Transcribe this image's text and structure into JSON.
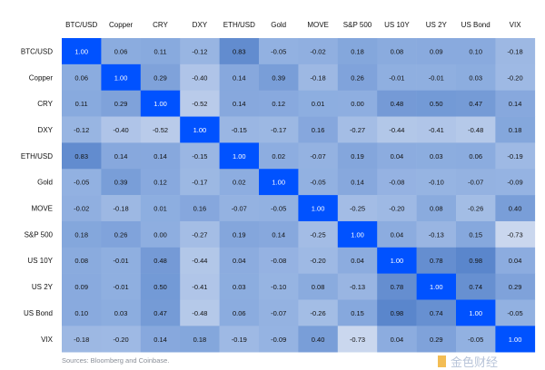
{
  "chart_data": {
    "type": "heatmap",
    "title": "",
    "columns": [
      "BTC/USD",
      "Copper",
      "CRY",
      "DXY",
      "ETH/USD",
      "Gold",
      "MOVE",
      "S&P 500",
      "US 10Y",
      "US 2Y",
      "US Bond",
      "VIX"
    ],
    "rows": [
      "BTC/USD",
      "Copper",
      "CRY",
      "DXY",
      "ETH/USD",
      "Gold",
      "MOVE",
      "S&P 500",
      "US 10Y",
      "US 2Y",
      "US Bond",
      "VIX"
    ],
    "values": [
      [
        1.0,
        0.06,
        0.11,
        -0.12,
        0.83,
        -0.05,
        -0.02,
        0.18,
        0.08,
        0.09,
        0.1,
        -0.18
      ],
      [
        0.06,
        1.0,
        0.29,
        -0.4,
        0.14,
        0.39,
        -0.18,
        0.26,
        -0.01,
        -0.01,
        0.03,
        -0.2
      ],
      [
        0.11,
        0.29,
        1.0,
        -0.52,
        0.14,
        0.12,
        0.01,
        0.0,
        0.48,
        0.5,
        0.47,
        0.14
      ],
      [
        -0.12,
        -0.4,
        -0.52,
        1.0,
        -0.15,
        -0.17,
        0.16,
        -0.27,
        -0.44,
        -0.41,
        -0.48,
        0.18
      ],
      [
        0.83,
        0.14,
        0.14,
        -0.15,
        1.0,
        0.02,
        -0.07,
        0.19,
        0.04,
        0.03,
        0.06,
        -0.19
      ],
      [
        -0.05,
        0.39,
        0.12,
        -0.17,
        0.02,
        1.0,
        -0.05,
        0.14,
        -0.08,
        -0.1,
        -0.07,
        -0.09
      ],
      [
        -0.02,
        -0.18,
        0.01,
        0.16,
        -0.07,
        -0.05,
        1.0,
        -0.25,
        -0.2,
        0.08,
        -0.26,
        0.4
      ],
      [
        0.18,
        0.26,
        0.0,
        -0.27,
        0.19,
        0.14,
        -0.25,
        1.0,
        0.04,
        -0.13,
        0.15,
        -0.73
      ],
      [
        0.08,
        -0.01,
        0.48,
        -0.44,
        0.04,
        -0.08,
        -0.2,
        0.04,
        1.0,
        0.78,
        0.98,
        0.04
      ],
      [
        0.09,
        -0.01,
        0.5,
        -0.41,
        0.03,
        -0.1,
        0.08,
        -0.13,
        0.78,
        1.0,
        0.74,
        0.29
      ],
      [
        0.1,
        0.03,
        0.47,
        -0.48,
        0.06,
        -0.07,
        -0.26,
        0.15,
        0.98,
        0.74,
        1.0,
        -0.05
      ],
      [
        -0.18,
        -0.2,
        0.14,
        0.18,
        -0.19,
        -0.09,
        0.4,
        -0.73,
        0.04,
        0.29,
        -0.05,
        1.0
      ]
    ],
    "colors": {
      "diagonal": "#0052ff",
      "high": "#5a86cc",
      "zero": "#8eaee0",
      "low": "#cad7ee"
    }
  },
  "source": "Sources: Bloomberg and Coinbase.",
  "watermark": "金色财经"
}
